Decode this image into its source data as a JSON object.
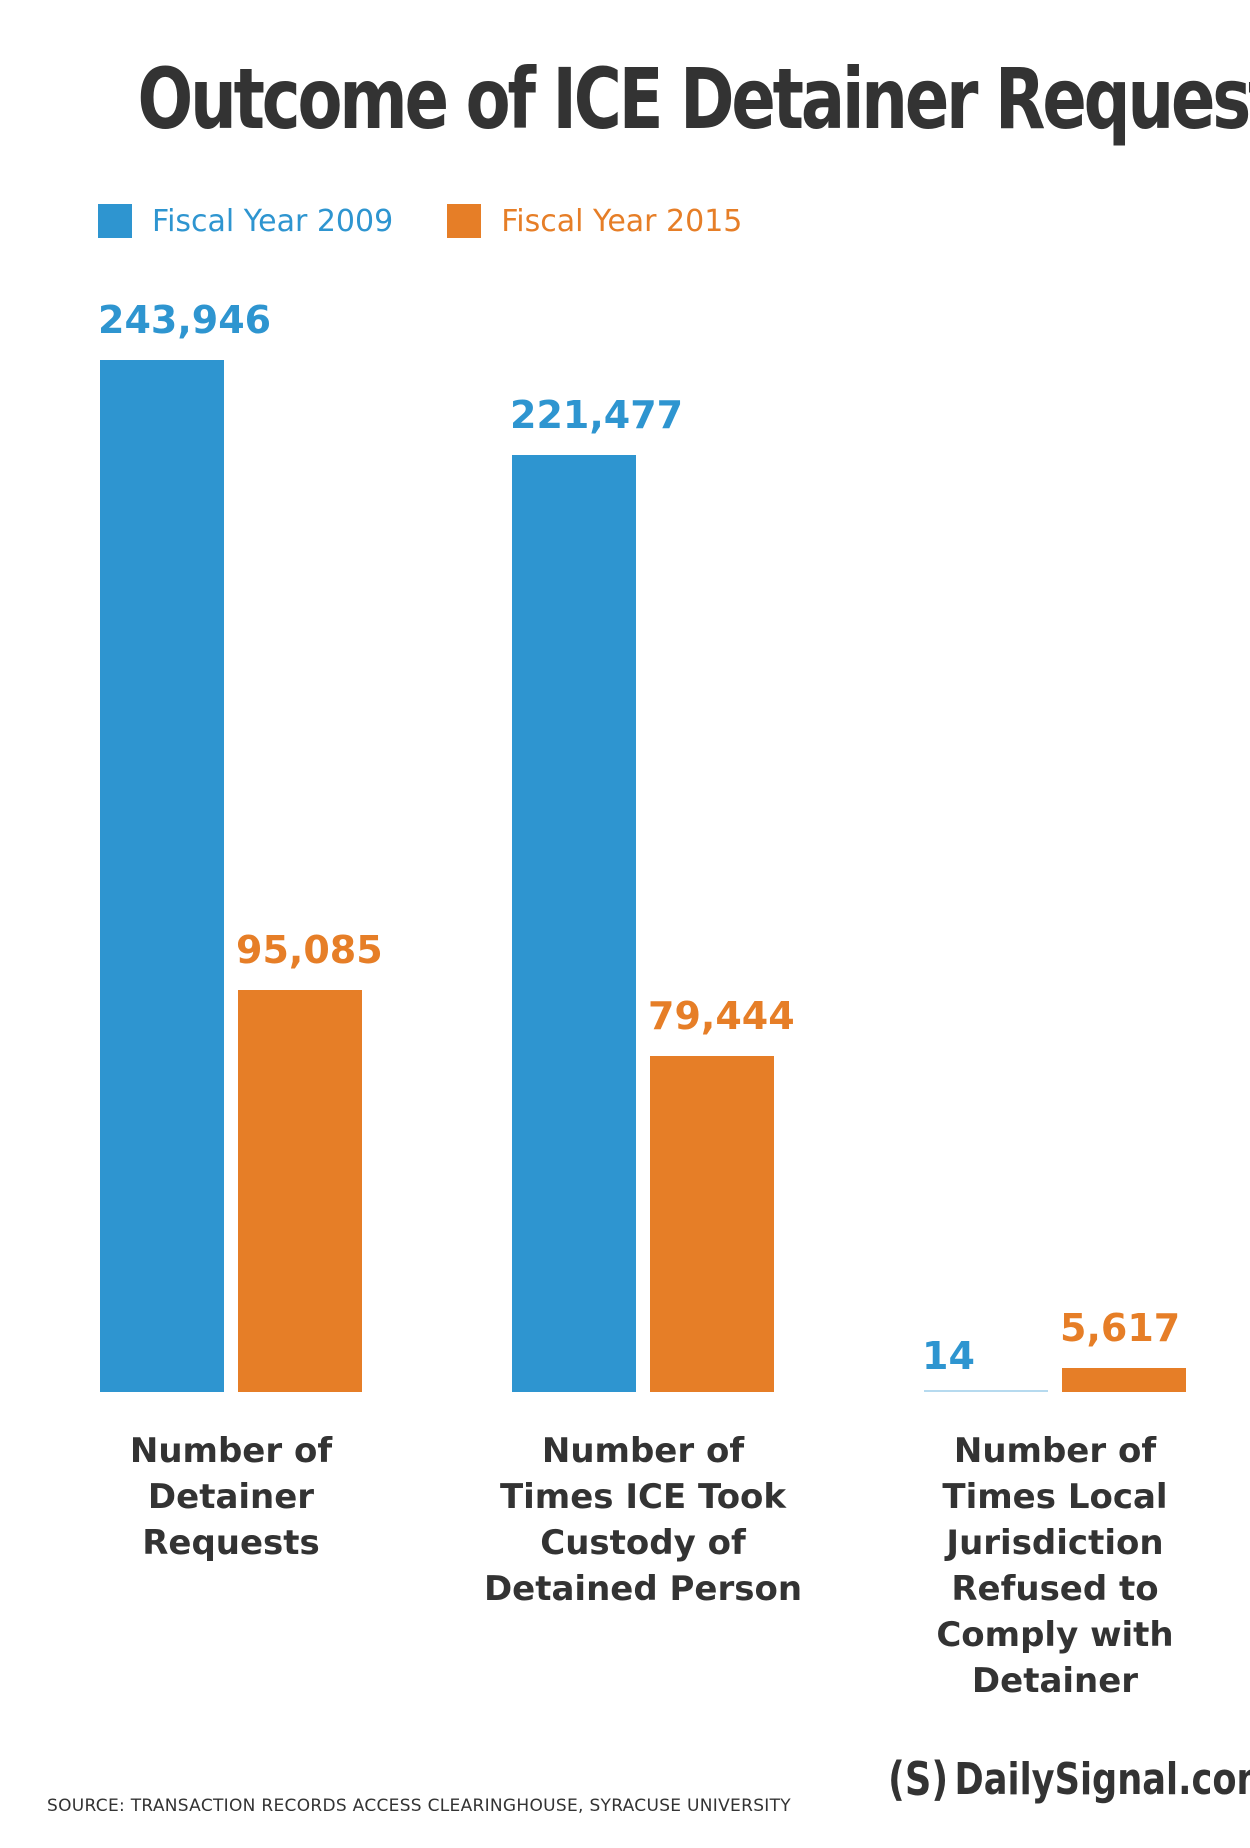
{
  "colors": {
    "fy2009": "#2e95d0",
    "fy2015": "#e67e27",
    "text": "#333333"
  },
  "chart_data": {
    "type": "bar",
    "title": "Outcome of ICE Detainer Requests",
    "categories": [
      "Number of Detainer Requests",
      "Number of Times ICE Took Custody of Detained Person",
      "Number of Times Local Jurisdiction Refused to Comply with Detainer"
    ],
    "series": [
      {
        "name": "Fiscal Year 2009",
        "values": [
          243946,
          221477,
          14
        ],
        "labels": [
          "243,946",
          "221,477",
          "14"
        ]
      },
      {
        "name": "Fiscal Year 2015",
        "values": [
          95085,
          79444,
          5617
        ],
        "labels": [
          "95,085",
          "79,444",
          "5,617"
        ]
      }
    ],
    "legend": "top-left",
    "grid": false
  },
  "category_lines": [
    [
      "Number of",
      "Detainer",
      "Requests"
    ],
    [
      "Number of",
      "Times ICE Took",
      "Custody of",
      "Detained Person"
    ],
    [
      "Number of",
      "Times Local",
      "Jurisdiction",
      "Refused to",
      "Comply with",
      "Detainer"
    ]
  ],
  "footer": {
    "source": "SOURCE: TRANSACTION RECORDS ACCESS CLEARINGHOUSE, SYRACUSE UNIVERSITY",
    "brand_mark": "(S)",
    "brand": "DailySignal.com"
  }
}
